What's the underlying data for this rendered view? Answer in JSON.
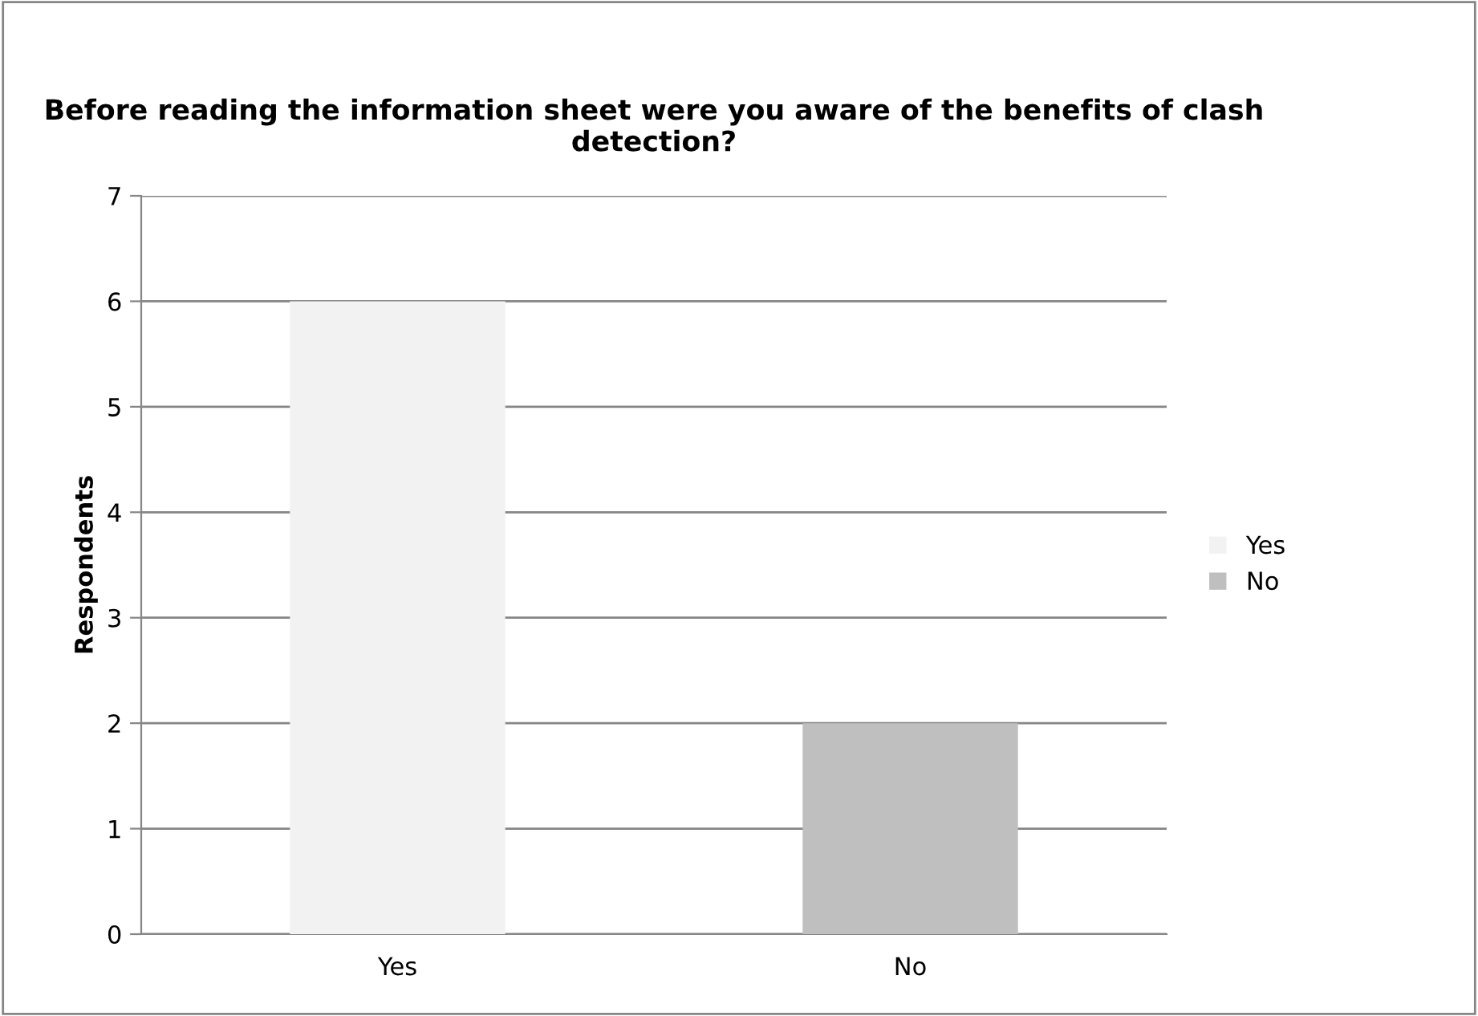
{
  "chart_data": {
    "type": "bar",
    "title": "Before reading the information sheet were you aware of the benefits of clash detection?",
    "ylabel": "Respondents",
    "categories": [
      "Yes",
      "No"
    ],
    "series": [
      {
        "name": "Yes",
        "color": "#f2f2f2",
        "values": [
          6,
          null
        ]
      },
      {
        "name": "No",
        "color": "#bfbfbf",
        "values": [
          null,
          2
        ]
      }
    ],
    "ylim": [
      0,
      7
    ],
    "yticks": [
      0,
      1,
      2,
      3,
      4,
      5,
      6,
      7
    ],
    "grid": "y",
    "legend": "right"
  }
}
